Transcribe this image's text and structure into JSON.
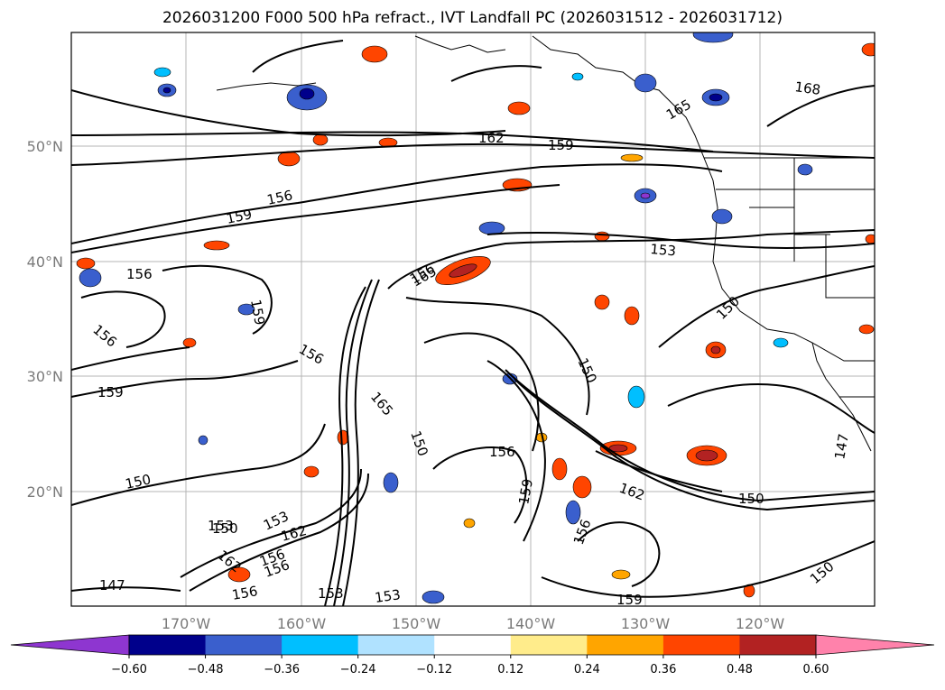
{
  "title": "2026031200 F000 500 hPa refract., IVT Landfall PC (2026031512 - 2026031712)",
  "axes": {
    "lat_labels": [
      "50°N",
      "40°N",
      "30°N",
      "20°N"
    ],
    "lon_labels": [
      "170°W",
      "160°W",
      "150°W",
      "140°W",
      "130°W",
      "120°W"
    ]
  },
  "contour_labels": [
    "168",
    "162",
    "159",
    "165",
    "156",
    "159",
    "153",
    "156",
    "156",
    "159",
    "150",
    "156",
    "150",
    "156",
    "165",
    "159",
    "150",
    "156",
    "150",
    "159",
    "150",
    "153",
    "162",
    "162",
    "153",
    "156",
    "147",
    "156",
    "153",
    "153",
    "162",
    "156",
    "156",
    "165",
    "150",
    "159",
    "150",
    "147"
  ],
  "colorbar": {
    "tick_labels": [
      "−0.60",
      "−0.48",
      "−0.36",
      "−0.24",
      "−0.12",
      "0.12",
      "0.24",
      "0.36",
      "0.48",
      "0.60"
    ],
    "colors": [
      "#8e36d0",
      "#00008b",
      "#3a5fcd",
      "#00bfff",
      "#b0e2ff",
      "#ffffff",
      "#ffec8b",
      "#ffa500",
      "#ff4500",
      "#b22222",
      "#ff82ab"
    ]
  }
}
